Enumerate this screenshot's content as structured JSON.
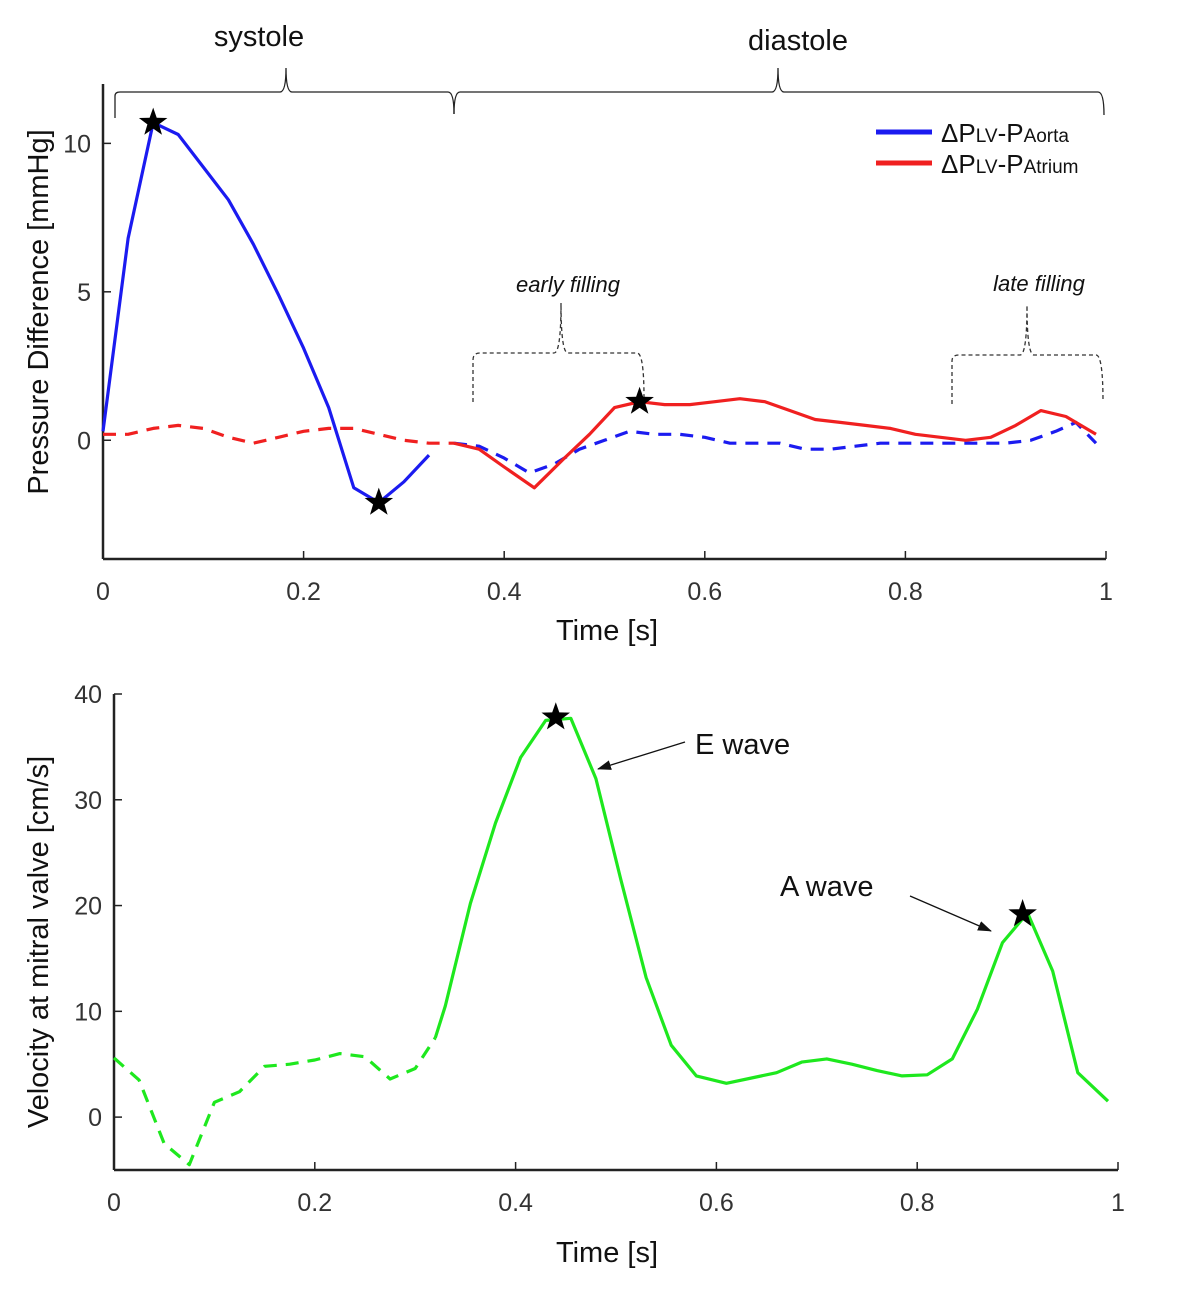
{
  "chart_data": [
    {
      "type": "line",
      "xlabel": "Time [s]",
      "ylabel": "Pressure Difference [mmHg]",
      "xlim": [
        0,
        1
      ],
      "ylim": [
        -4,
        12
      ],
      "xticks": [
        "0",
        "0.2",
        "0.4",
        "0.6",
        "0.8",
        "1"
      ],
      "yticks": [
        "0",
        "5",
        "10"
      ],
      "grid": false,
      "legend_position": "top-right",
      "phase_labels": {
        "systole": "systole",
        "diastole": "diastole"
      },
      "filling_labels": {
        "early": "early filling",
        "late": "late filling"
      },
      "series": [
        {
          "legend_main": "ΔP",
          "legend_sub1": "LV",
          "legend_dash": "-P",
          "legend_sub2": "Aorta",
          "color": "#1b1bf0",
          "solid": [
            [
              0,
              0.3
            ],
            [
              0.025,
              6.8
            ],
            [
              0.05,
              10.7
            ],
            [
              0.075,
              10.3
            ],
            [
              0.1,
              9.2
            ],
            [
              0.125,
              8.1
            ],
            [
              0.15,
              6.6
            ],
            [
              0.175,
              4.9
            ],
            [
              0.2,
              3.1
            ],
            [
              0.225,
              1.1
            ],
            [
              0.25,
              -1.6
            ],
            [
              0.275,
              -2.1
            ],
            [
              0.3,
              -1.4
            ],
            [
              0.325,
              -0.5
            ]
          ],
          "dashed": [
            [
              0.35,
              -0.1
            ],
            [
              0.375,
              -0.2
            ],
            [
              0.4,
              -0.6
            ],
            [
              0.425,
              -1.1
            ],
            [
              0.45,
              -0.8
            ],
            [
              0.475,
              -0.3
            ],
            [
              0.5,
              0.0
            ],
            [
              0.525,
              0.3
            ],
            [
              0.55,
              0.2
            ],
            [
              0.575,
              0.2
            ],
            [
              0.6,
              0.1
            ],
            [
              0.625,
              -0.1
            ],
            [
              0.65,
              -0.1
            ],
            [
              0.675,
              -0.1
            ],
            [
              0.7,
              -0.3
            ],
            [
              0.725,
              -0.3
            ],
            [
              0.75,
              -0.2
            ],
            [
              0.775,
              -0.1
            ],
            [
              0.8,
              -0.1
            ],
            [
              0.825,
              -0.1
            ],
            [
              0.85,
              -0.1
            ],
            [
              0.875,
              -0.1
            ],
            [
              0.9,
              -0.1
            ],
            [
              0.925,
              0.0
            ],
            [
              0.95,
              0.3
            ],
            [
              0.97,
              0.6
            ],
            [
              0.99,
              -0.1
            ]
          ]
        },
        {
          "legend_main": "ΔP",
          "legend_sub1": "LV",
          "legend_dash": "-P",
          "legend_sub2": "Atrium",
          "color": "#f02020",
          "dashed": [
            [
              0,
              0.2
            ],
            [
              0.025,
              0.2
            ],
            [
              0.05,
              0.4
            ],
            [
              0.075,
              0.5
            ],
            [
              0.1,
              0.4
            ],
            [
              0.125,
              0.1
            ],
            [
              0.15,
              -0.1
            ],
            [
              0.175,
              0.1
            ],
            [
              0.2,
              0.3
            ],
            [
              0.225,
              0.4
            ],
            [
              0.25,
              0.4
            ],
            [
              0.275,
              0.2
            ],
            [
              0.3,
              0.0
            ],
            [
              0.325,
              -0.1
            ],
            [
              0.35,
              -0.1
            ]
          ],
          "solid": [
            [
              0.35,
              -0.1
            ],
            [
              0.375,
              -0.3
            ],
            [
              0.4,
              -0.9
            ],
            [
              0.43,
              -1.6
            ],
            [
              0.46,
              -0.6
            ],
            [
              0.485,
              0.2
            ],
            [
              0.51,
              1.1
            ],
            [
              0.535,
              1.3
            ],
            [
              0.56,
              1.2
            ],
            [
              0.585,
              1.2
            ],
            [
              0.61,
              1.3
            ],
            [
              0.635,
              1.4
            ],
            [
              0.66,
              1.3
            ],
            [
              0.685,
              1.0
            ],
            [
              0.71,
              0.7
            ],
            [
              0.735,
              0.6
            ],
            [
              0.76,
              0.5
            ],
            [
              0.785,
              0.4
            ],
            [
              0.81,
              0.2
            ],
            [
              0.835,
              0.1
            ],
            [
              0.86,
              0.0
            ],
            [
              0.885,
              0.1
            ],
            [
              0.91,
              0.5
            ],
            [
              0.935,
              1.0
            ],
            [
              0.96,
              0.8
            ],
            [
              0.99,
              0.2
            ]
          ]
        }
      ],
      "markers": [
        [
          0.05,
          10.7
        ],
        [
          0.275,
          -2.1
        ],
        [
          0.535,
          1.3
        ]
      ]
    },
    {
      "type": "line",
      "xlabel": "Time [s]",
      "ylabel": "Velocity at mitral valve [cm/s]",
      "xlim": [
        0,
        1
      ],
      "ylim": [
        -5,
        40
      ],
      "xticks": [
        "0",
        "0.2",
        "0.4",
        "0.6",
        "0.8",
        "1"
      ],
      "yticks": [
        "0",
        "10",
        "20",
        "30",
        "40"
      ],
      "grid": false,
      "series": [
        {
          "color": "#1ee81e",
          "dashed": [
            [
              0,
              5.6
            ],
            [
              0.025,
              3.5
            ],
            [
              0.05,
              -2.5
            ],
            [
              0.075,
              -4.5
            ],
            [
              0.1,
              1.4
            ],
            [
              0.125,
              2.4
            ],
            [
              0.15,
              4.8
            ],
            [
              0.175,
              5.0
            ],
            [
              0.2,
              5.4
            ],
            [
              0.225,
              6.0
            ],
            [
              0.25,
              5.7
            ],
            [
              0.275,
              3.6
            ],
            [
              0.3,
              4.6
            ],
            [
              0.32,
              7.5
            ]
          ],
          "solid": [
            [
              0.32,
              7.5
            ],
            [
              0.33,
              10.5
            ],
            [
              0.355,
              20.2
            ],
            [
              0.38,
              27.8
            ],
            [
              0.405,
              34.0
            ],
            [
              0.43,
              37.5
            ],
            [
              0.455,
              37.7
            ],
            [
              0.48,
              32.0
            ],
            [
              0.505,
              22.4
            ],
            [
              0.53,
              13.2
            ],
            [
              0.555,
              6.8
            ],
            [
              0.58,
              3.9
            ],
            [
              0.61,
              3.2
            ],
            [
              0.635,
              3.7
            ],
            [
              0.66,
              4.2
            ],
            [
              0.685,
              5.2
            ],
            [
              0.71,
              5.5
            ],
            [
              0.735,
              5.0
            ],
            [
              0.76,
              4.4
            ],
            [
              0.785,
              3.9
            ],
            [
              0.81,
              4.0
            ],
            [
              0.835,
              5.5
            ],
            [
              0.86,
              10.2
            ],
            [
              0.885,
              16.5
            ],
            [
              0.91,
              19.3
            ],
            [
              0.935,
              13.8
            ],
            [
              0.96,
              4.2
            ],
            [
              0.99,
              1.5
            ]
          ]
        }
      ],
      "markers": [
        [
          0.44,
          37.8
        ],
        [
          0.905,
          19.2
        ]
      ],
      "annotations": [
        {
          "text": "E wave"
        },
        {
          "text": "A wave"
        }
      ]
    }
  ]
}
